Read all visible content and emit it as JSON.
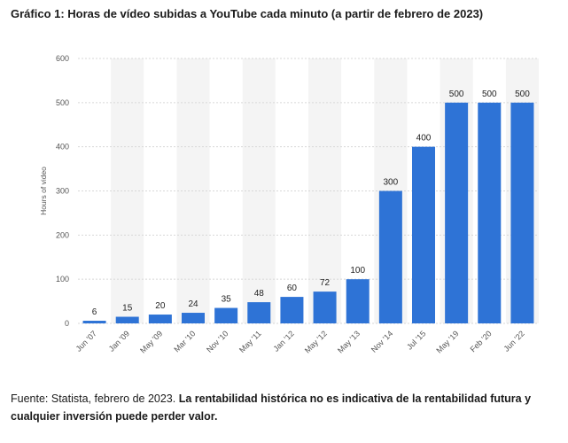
{
  "title": "Gráfico 1: Horas de vídeo subidas a YouTube cada minuto (a partir de febrero de 2023)",
  "footer": {
    "source": "Fuente: Statista, febrero de 2023.",
    "disclaimer": "La rentabilidad histórica no es indicativa de la rentabilidad futura y cualquier inversión puede perder valor."
  },
  "colors": {
    "bar": "#2e73d6",
    "grid": "#d7d7d7",
    "band": "#f4f4f4",
    "axis_text": "#555555",
    "label_text": "#222222"
  },
  "chart_data": {
    "type": "bar",
    "ylabel": "Hours of video",
    "ylim": [
      0,
      600
    ],
    "yticks": [
      0,
      100,
      200,
      300,
      400,
      500,
      600
    ],
    "grid": true,
    "categories": [
      "Jun '07",
      "Jan '09",
      "May '09",
      "Mar '10",
      "Nov '10",
      "May '11",
      "Jan '12",
      "May '12",
      "May '13",
      "Nov '14",
      "Jul '15",
      "May '19",
      "Feb '20",
      "Jun '22"
    ],
    "values": [
      6,
      15,
      20,
      24,
      35,
      48,
      60,
      72,
      100,
      300,
      400,
      500,
      500,
      500
    ],
    "data_labels": [
      "6",
      "15",
      "20",
      "24",
      "35",
      "48",
      "60",
      "72",
      "100",
      "300",
      "400",
      "500",
      "500",
      "500"
    ]
  }
}
